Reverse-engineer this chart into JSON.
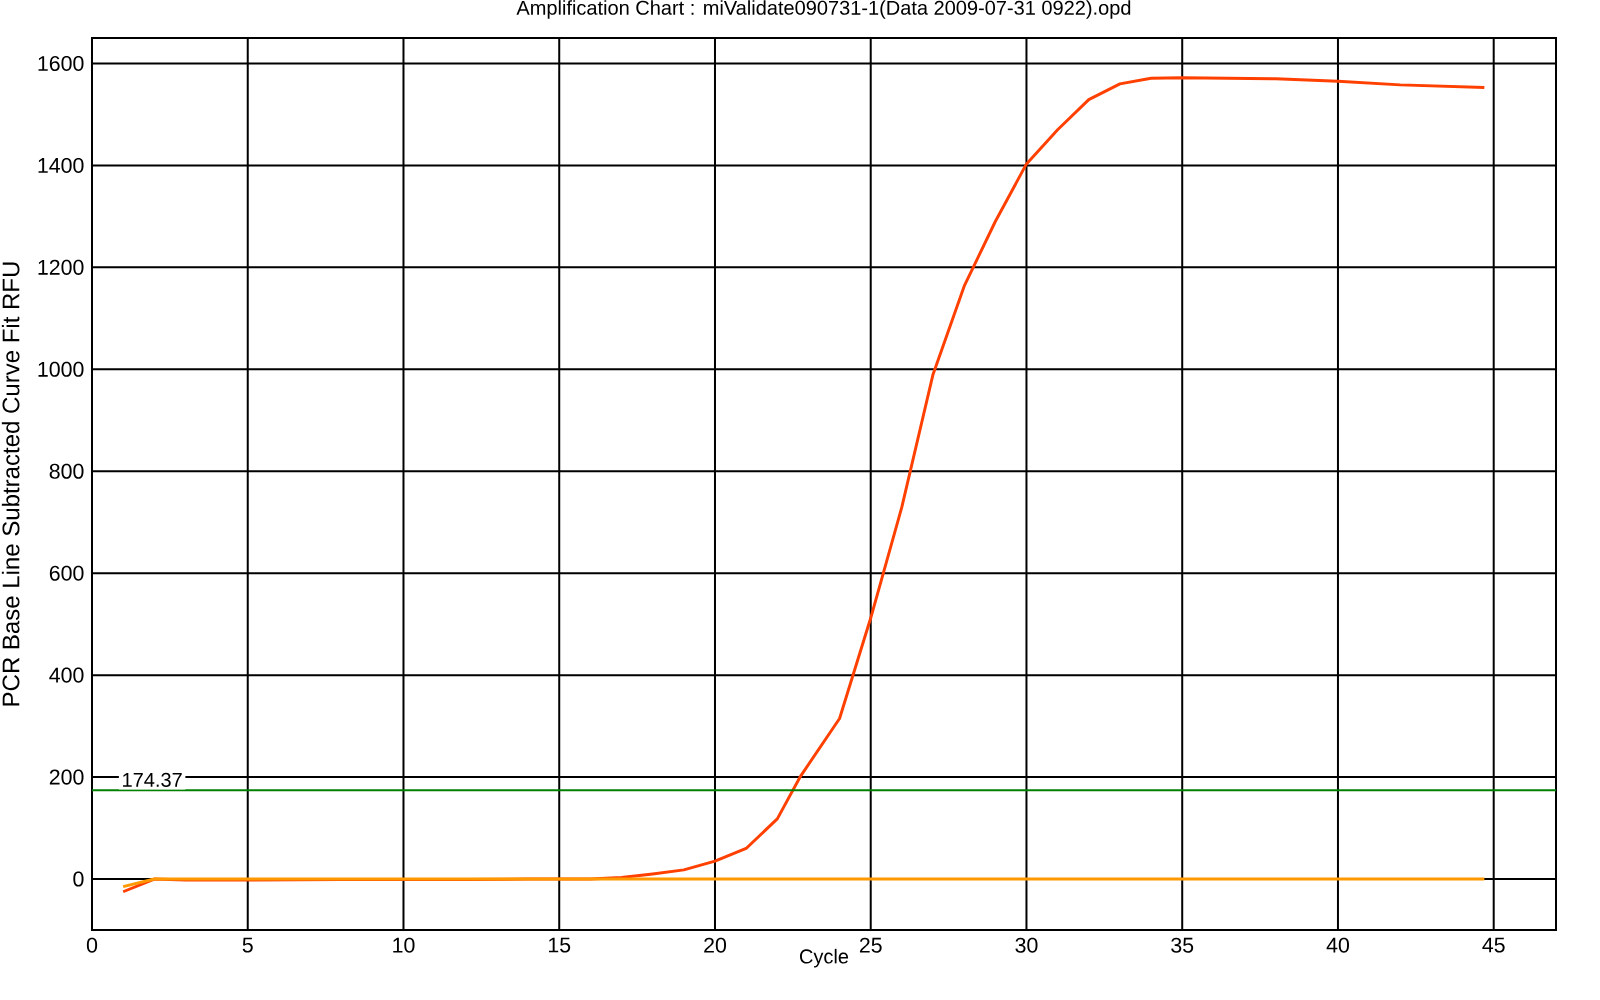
{
  "chart_data": {
    "type": "line",
    "title": "Amplification Chart : miValidate090731-1(Data 2009-07-31 0922).opd",
    "xlabel": "Cycle",
    "ylabel": "PCR Base Line Subtracted Curve Fit RFU",
    "xlim": [
      0,
      47
    ],
    "ylim": [
      -100,
      1650
    ],
    "xticks": [
      0,
      5,
      10,
      15,
      20,
      25,
      30,
      35,
      40,
      45
    ],
    "yticks": [
      0,
      200,
      400,
      600,
      800,
      1000,
      1200,
      1400,
      1600
    ],
    "grid": true,
    "marker": "none",
    "line_style": "solid",
    "series": [
      {
        "color": "#ff4000",
        "x": [
          1,
          2,
          3,
          5,
          8,
          10,
          12,
          14,
          16,
          17,
          18,
          19,
          20,
          21,
          22,
          22.75,
          24,
          25,
          26,
          27,
          28,
          29,
          30,
          31,
          32,
          33,
          34,
          35,
          38,
          40,
          42,
          44.7
        ],
        "values": [
          -25,
          0,
          -2,
          -2,
          -1,
          -1,
          -1,
          0,
          0,
          3,
          10,
          18,
          35,
          60,
          118,
          202,
          315,
          512,
          730,
          990,
          1163,
          1290,
          1403,
          1470,
          1529,
          1560,
          1571,
          1572,
          1570,
          1565,
          1558,
          1553
        ]
      },
      {
        "color": "#ff9900",
        "x": [
          1,
          2,
          10,
          20,
          30,
          40,
          44.7
        ],
        "values": [
          -15,
          0,
          0,
          0,
          0,
          0,
          0
        ]
      }
    ],
    "ref_lines": [
      {
        "axis": "y",
        "value": 174.37,
        "label": "174.37",
        "color": "#008000"
      }
    ]
  }
}
